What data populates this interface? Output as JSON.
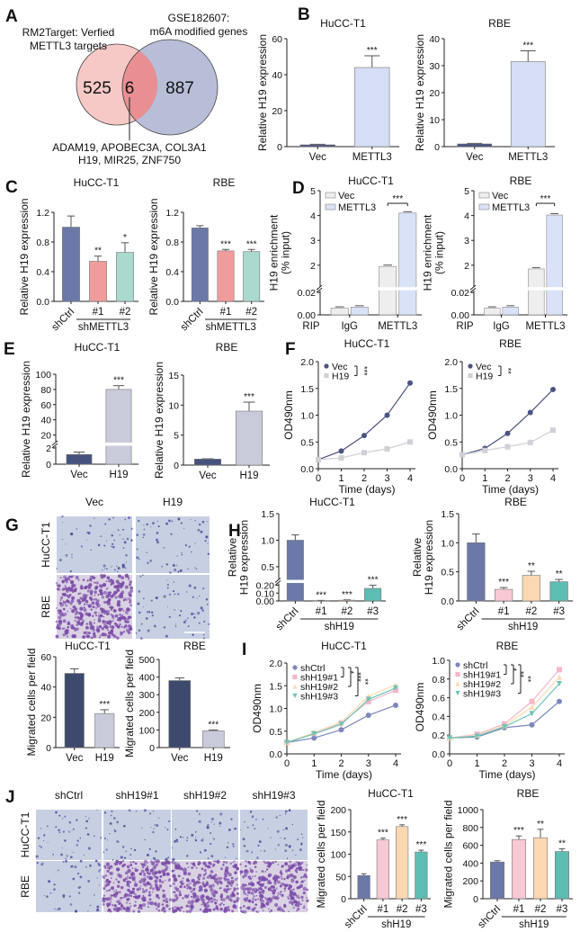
{
  "panel_letters": [
    "A",
    "B",
    "C",
    "D",
    "E",
    "F",
    "G",
    "H",
    "I",
    "J"
  ],
  "venn": {
    "left_label": [
      "RM2Target: Verfied",
      "METTL3 targets"
    ],
    "right_label": [
      "GSE182607:",
      "m6A modified genes"
    ],
    "left_only": "525",
    "overlap": "6",
    "right_only": "887",
    "genes": [
      "ADAM19, APOBEC3A, COL3A1",
      "H19, MIR25, ZNF750"
    ],
    "colors": {
      "left": "#f6c9c6",
      "right": "#b4bbd6",
      "overlap": "#e98f92"
    }
  },
  "micrographs": {
    "G": {
      "columns": [
        "Vec",
        "H19"
      ],
      "rows": [
        "HuCC-T1",
        "RBE"
      ]
    },
    "J": {
      "columns": [
        "shCtrl",
        "shH19#1",
        "shH19#2",
        "shH19#3"
      ],
      "rows": [
        "HuCC-T1",
        "RBE"
      ]
    }
  },
  "chart_data": [
    {
      "id": "B1",
      "panel": "B",
      "type": "bar",
      "title": "HuCC-T1",
      "ylabel": [
        "Relative H19 expression"
      ],
      "ylim": [
        0,
        60
      ],
      "yticks": [
        "0",
        "20",
        "40",
        "60"
      ],
      "categories": [
        "Vec",
        "METTL3"
      ],
      "values": [
        1,
        44
      ],
      "errors": [
        0.3,
        6.5
      ],
      "sig": [
        "",
        "***"
      ],
      "colors": [
        "#46527e",
        "#d5def5"
      ]
    },
    {
      "id": "B2",
      "panel": "B",
      "type": "bar",
      "title": "RBE",
      "ylabel": [
        "Relative H19 expression"
      ],
      "ylim": [
        0,
        40
      ],
      "yticks": [
        "0",
        "10",
        "20",
        "30",
        "40"
      ],
      "categories": [
        "Vec",
        "METTL3"
      ],
      "values": [
        1,
        31.5
      ],
      "errors": [
        0.2,
        4
      ],
      "sig": [
        "",
        "***"
      ],
      "colors": [
        "#46527e",
        "#d5def5"
      ]
    },
    {
      "id": "C1",
      "panel": "C",
      "type": "bar",
      "title": "HuCC-T1",
      "ylabel": [
        "Relative H19 expression"
      ],
      "ylim": [
        0,
        1.2
      ],
      "yticks": [
        "0.0",
        "0.4",
        "0.8",
        "1.2"
      ],
      "categories": [
        "shCtrl",
        "#1",
        "#2"
      ],
      "group_label": "shMETTL3",
      "values": [
        1.0,
        0.54,
        0.66
      ],
      "errors": [
        0.15,
        0.07,
        0.13
      ],
      "sig": [
        "",
        "**",
        "*"
      ],
      "colors": [
        "#6b78a8",
        "#f19c9c",
        "#a9d9cf"
      ]
    },
    {
      "id": "C2",
      "panel": "C",
      "type": "bar",
      "title": "RBE",
      "ylabel": [
        "Relative H19 expression"
      ],
      "ylim": [
        0,
        1.2
      ],
      "yticks": [
        "0.0",
        "0.4",
        "0.8",
        "1.2"
      ],
      "categories": [
        "shCtrl",
        "#1",
        "#2"
      ],
      "group_label": "shMETTL3",
      "values": [
        0.99,
        0.68,
        0.67
      ],
      "errors": [
        0.03,
        0.02,
        0.03
      ],
      "sig": [
        "",
        "***",
        "***"
      ],
      "colors": [
        "#6b78a8",
        "#f19c9c",
        "#a9d9cf"
      ]
    },
    {
      "id": "D1",
      "panel": "D",
      "type": "grouped_bar",
      "title": "HuCC-T1",
      "ylabel": [
        "H19 enrichment",
        "(% input)"
      ],
      "axis_break": {
        "lower": [
          0,
          0.02
        ],
        "upper": [
          1.2,
          5
        ]
      },
      "yticks": [
        "0.00",
        "0.02",
        "2",
        "3",
        "4",
        "5"
      ],
      "x_prefix": "RIP",
      "categories": [
        "IgG",
        "METTL3"
      ],
      "series": [
        {
          "name": "Vec",
          "values": [
            0.006,
            1.95
          ],
          "color": "#eeeeee"
        },
        {
          "name": "METTL3",
          "values": [
            0.007,
            4.1
          ],
          "color": "#d9e2f7"
        }
      ],
      "sig": "***"
    },
    {
      "id": "D2",
      "panel": "D",
      "type": "grouped_bar",
      "title": "RBE",
      "ylabel": [
        "H19 enrichment",
        "(% input)"
      ],
      "axis_break": {
        "lower": [
          0,
          0.02
        ],
        "upper": [
          1.2,
          5
        ]
      },
      "yticks": [
        "0.00",
        "0.02",
        "2",
        "3",
        "4",
        "5"
      ],
      "x_prefix": "RIP",
      "categories": [
        "IgG",
        "METTL3"
      ],
      "series": [
        {
          "name": "Vec",
          "values": [
            0.006,
            1.85
          ],
          "color": "#eeeeee"
        },
        {
          "name": "METTL3",
          "values": [
            0.007,
            4.02
          ],
          "color": "#d9e2f7"
        }
      ],
      "sig": "***"
    },
    {
      "id": "E1",
      "panel": "E",
      "type": "bar",
      "title": "HuCC-T1",
      "ylabel": [
        "Relative H19 expression"
      ],
      "axis_break": {
        "lower": [
          0,
          2
        ],
        "upper": [
          10,
          100
        ]
      },
      "yticks": [
        "0",
        "2",
        "20",
        "40",
        "60",
        "80",
        "100"
      ],
      "categories": [
        "Vec",
        "H19"
      ],
      "values": [
        1.2,
        80
      ],
      "errors": [
        0.3,
        5
      ],
      "sig": [
        "",
        "***"
      ],
      "colors": [
        "#46527e",
        "#c9cbdb"
      ]
    },
    {
      "id": "E2",
      "panel": "E",
      "type": "bar",
      "title": "RBE",
      "ylabel": [
        "Relative H19 expression"
      ],
      "ylim": [
        0,
        15
      ],
      "yticks": [
        "0",
        "5",
        "10",
        "15"
      ],
      "categories": [
        "Vec",
        "H19"
      ],
      "values": [
        1,
        9
      ],
      "errors": [
        0.05,
        1.5
      ],
      "sig": [
        "",
        "***"
      ],
      "colors": [
        "#46527e",
        "#c9cbdb"
      ]
    },
    {
      "id": "F1",
      "panel": "F",
      "type": "line",
      "title": "HuCC-T1",
      "xlabel": "Time (days)",
      "ylabel": "OD490nm",
      "x": [
        0,
        1,
        2,
        3,
        4
      ],
      "ylim": [
        0,
        2
      ],
      "yticks": [
        "0.0",
        "0.5",
        "1.0",
        "1.5",
        "2.0"
      ],
      "series": [
        {
          "name": "Vec",
          "values": [
            0.17,
            0.33,
            0.62,
            1.0,
            1.6
          ],
          "color": "#4a5480",
          "marker": "circle"
        },
        {
          "name": "H19",
          "values": [
            0.17,
            0.2,
            0.3,
            0.37,
            0.5
          ],
          "color": "#d0d0d8",
          "marker": "square"
        }
      ],
      "sig": [
        "***"
      ]
    },
    {
      "id": "F2",
      "panel": "F",
      "type": "line",
      "title": "RBE",
      "xlabel": "Time (days)",
      "ylabel": "OD490nm",
      "x": [
        0,
        1,
        2,
        3,
        4
      ],
      "ylim": [
        0,
        2
      ],
      "yticks": [
        "0.0",
        "0.5",
        "1.0",
        "1.5",
        "2.0"
      ],
      "series": [
        {
          "name": "Vec",
          "values": [
            0.26,
            0.38,
            0.66,
            1.05,
            1.48
          ],
          "color": "#4a5480",
          "marker": "circle"
        },
        {
          "name": "H19",
          "values": [
            0.26,
            0.34,
            0.41,
            0.49,
            0.72
          ],
          "color": "#d0d0d8",
          "marker": "square"
        }
      ],
      "sig": [
        "**"
      ]
    },
    {
      "id": "G1",
      "panel": "G",
      "type": "bar",
      "title": "HuCC-T1",
      "ylabel": [
        "Migrated cells per field"
      ],
      "ylim": [
        0,
        60
      ],
      "yticks": [
        "0",
        "20",
        "40",
        "60"
      ],
      "categories": [
        "Vec",
        "H19"
      ],
      "values": [
        49,
        22.5
      ],
      "errors": [
        3,
        2.5
      ],
      "sig": [
        "",
        "***"
      ],
      "colors": [
        "#3d4a6d",
        "#c9cbdb"
      ]
    },
    {
      "id": "G2",
      "panel": "G",
      "type": "bar",
      "title": "RBE",
      "ylabel": [
        "Migrated cells per field"
      ],
      "ylim": [
        0,
        500
      ],
      "yticks": [
        "0",
        "100",
        "200",
        "300",
        "400",
        "500"
      ],
      "categories": [
        "Vec",
        "H19"
      ],
      "values": [
        380,
        95
      ],
      "errors": [
        15,
        5
      ],
      "sig": [
        "",
        "***"
      ],
      "colors": [
        "#3d4a6d",
        "#c9cbdb"
      ]
    },
    {
      "id": "H1",
      "panel": "H",
      "type": "bar",
      "title": "HuCC-T1",
      "ylabel": [
        "Relative",
        "H19 expression"
      ],
      "axis_break": {
        "lower": [
          0,
          0.2
        ],
        "upper": [
          0.25,
          1.5
        ]
      },
      "yticks": [
        "0.00",
        "0.10",
        "0.20",
        "0.5",
        "1.0",
        "1.5"
      ],
      "categories": [
        "shCtrl",
        "#1",
        "#2",
        "#3"
      ],
      "group_label": "shH19",
      "values": [
        1.0,
        0.005,
        0.01,
        0.16
      ],
      "errors": [
        0.1,
        0.002,
        0.004,
        0.04
      ],
      "sig": [
        "",
        "***",
        "***",
        "***"
      ],
      "colors": [
        "#6b78a8",
        "#f7c9d5",
        "#fcd8b2",
        "#5dbdb2"
      ]
    },
    {
      "id": "H2",
      "panel": "H",
      "type": "bar",
      "title": "RBE",
      "ylabel": [
        "Relative",
        "H19 expression"
      ],
      "ylim": [
        0,
        1.5
      ],
      "yticks": [
        "0.0",
        "0.5",
        "1.0",
        "1.5"
      ],
      "categories": [
        "shCtrl",
        "#1",
        "#2",
        "#3"
      ],
      "group_label": "shH19",
      "values": [
        1.0,
        0.2,
        0.44,
        0.33
      ],
      "errors": [
        0.15,
        0.03,
        0.07,
        0.04
      ],
      "sig": [
        "",
        "***",
        "**",
        "**"
      ],
      "colors": [
        "#6b78a8",
        "#f7c9d5",
        "#fcd8b2",
        "#5dbdb2"
      ]
    },
    {
      "id": "I1",
      "panel": "I",
      "type": "line",
      "title": "HuCC-T1",
      "xlabel": "Time (days)",
      "ylabel": "OD490nm",
      "x": [
        0,
        1,
        2,
        3,
        4
      ],
      "ylim": [
        0,
        2
      ],
      "yticks": [
        "0.0",
        "0.5",
        "1.0",
        "1.5",
        "2.0"
      ],
      "series": [
        {
          "name": "shCtrl",
          "values": [
            0.25,
            0.35,
            0.53,
            0.85,
            1.07
          ],
          "color": "#7c88bc",
          "marker": "circle"
        },
        {
          "name": "shH19#1",
          "values": [
            0.25,
            0.45,
            0.68,
            1.15,
            1.4
          ],
          "color": "#f4b8c8",
          "marker": "square"
        },
        {
          "name": "shH19#2",
          "values": [
            0.25,
            0.47,
            0.7,
            1.27,
            1.52
          ],
          "color": "#fbdcb0",
          "marker": "triangle"
        },
        {
          "name": "shH19#3",
          "values": [
            0.25,
            0.44,
            0.65,
            1.2,
            1.45
          ],
          "color": "#6ec4b8",
          "marker": "tri-down"
        }
      ],
      "sig": [
        "*",
        "***",
        "**"
      ]
    },
    {
      "id": "I2",
      "panel": "I",
      "type": "line",
      "title": "RBE",
      "xlabel": "Time (days)",
      "ylabel": "OD490nm",
      "x": [
        0,
        1,
        2,
        3,
        4
      ],
      "ylim": [
        0,
        1
      ],
      "yticks": [
        "0.0",
        "0.2",
        "0.4",
        "0.6",
        "0.8",
        "1.0"
      ],
      "series": [
        {
          "name": "shCtrl",
          "values": [
            0.17,
            0.18,
            0.28,
            0.31,
            0.56
          ],
          "color": "#7c88bc",
          "marker": "circle"
        },
        {
          "name": "shH19#1",
          "values": [
            0.17,
            0.21,
            0.32,
            0.56,
            0.9
          ],
          "color": "#f4b8c8",
          "marker": "square"
        },
        {
          "name": "shH19#2",
          "values": [
            0.17,
            0.2,
            0.3,
            0.5,
            0.82
          ],
          "color": "#fbdcb0",
          "marker": "triangle"
        },
        {
          "name": "shH19#3",
          "values": [
            0.17,
            0.19,
            0.29,
            0.43,
            0.75
          ],
          "color": "#6ec4b8",
          "marker": "tri-down"
        }
      ],
      "sig": [
        "*",
        "**",
        "**"
      ]
    },
    {
      "id": "J1",
      "panel": "J",
      "type": "bar",
      "title": "HuCC-T1",
      "ylabel": [
        "Migrated cells per field"
      ],
      "ylim": [
        0,
        200
      ],
      "yticks": [
        "0",
        "50",
        "100",
        "150",
        "200"
      ],
      "categories": [
        "shCtrl",
        "#1",
        "#2",
        "#3"
      ],
      "group_label": "shH19",
      "values": [
        52,
        132,
        162,
        105
      ],
      "errors": [
        4,
        4,
        4,
        4
      ],
      "sig": [
        "",
        "***",
        "***",
        "***"
      ],
      "colors": [
        "#6b78a8",
        "#f7c9d5",
        "#fcd8b2",
        "#5dbdb2"
      ]
    },
    {
      "id": "J2",
      "panel": "J",
      "type": "bar",
      "title": "RBE",
      "ylabel": [
        "Migrated cells per field"
      ],
      "ylim": [
        0,
        1000
      ],
      "yticks": [
        "0",
        "200",
        "400",
        "600",
        "800",
        "1000"
      ],
      "categories": [
        "shCtrl",
        "#1",
        "#2",
        "#3"
      ],
      "group_label": "shH19",
      "values": [
        412,
        665,
        685,
        530
      ],
      "errors": [
        15,
        40,
        95,
        30
      ],
      "sig": [
        "",
        "***",
        "**",
        "**"
      ],
      "colors": [
        "#6b78a8",
        "#f7c9d5",
        "#fcd8b2",
        "#5dbdb2"
      ]
    }
  ]
}
